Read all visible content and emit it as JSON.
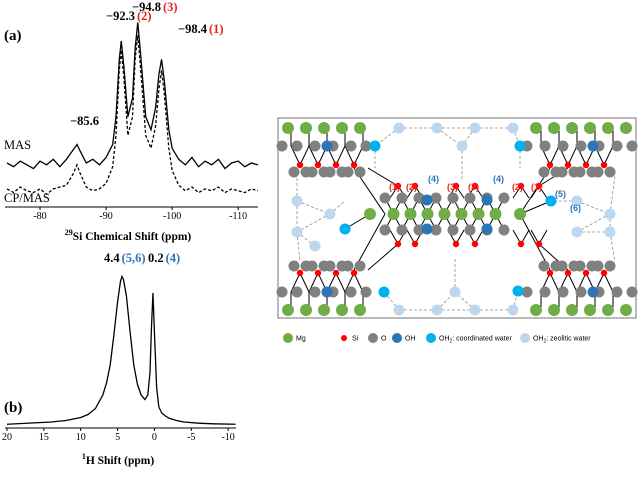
{
  "chart_data": [
    {
      "type": "line",
      "panel": "(a)",
      "xlabel_sup": "29",
      "xlabel": "Si Chemical Shift (ppm)",
      "xlim": [
        -75,
        -113
      ],
      "xticks": [
        -80,
        -90,
        -100,
        -110
      ],
      "ylim": [
        0,
        100
      ],
      "x": [
        -75,
        -76,
        -77,
        -78,
        -79,
        -80,
        -81,
        -82,
        -83,
        -84,
        -85,
        -85.6,
        -86,
        -87,
        -88,
        -89,
        -90,
        -91,
        -91.5,
        -92,
        -92.3,
        -92.7,
        -93.3,
        -94,
        -94.4,
        -94.8,
        -95.2,
        -96,
        -96.8,
        -97.5,
        -98,
        -98.4,
        -98.8,
        -99.5,
        -100,
        -101,
        -102,
        -103,
        -104,
        -105,
        -106,
        -107,
        -108,
        -109,
        -110,
        -111,
        -112,
        -113
      ],
      "series": [
        {
          "name": "MAS",
          "color": "#000000",
          "linestyle": "solid",
          "values": [
            20,
            18,
            21,
            19,
            17,
            21,
            19,
            22,
            18,
            22,
            27,
            30,
            27,
            20,
            22,
            19,
            23,
            30,
            45,
            76,
            86,
            72,
            45,
            55,
            82,
            96,
            80,
            45,
            38,
            50,
            68,
            76,
            65,
            38,
            28,
            22,
            19,
            23,
            18,
            21,
            19,
            22,
            17,
            20,
            21,
            18,
            20,
            19
          ]
        },
        {
          "name": "CP/MAS",
          "color": "#000000",
          "linestyle": "dashed",
          "values": [
            6,
            4,
            7,
            5,
            4,
            6,
            3,
            6,
            7,
            8,
            14,
            19,
            15,
            7,
            5,
            6,
            9,
            18,
            35,
            70,
            81,
            66,
            35,
            45,
            76,
            89,
            72,
            35,
            28,
            40,
            60,
            70,
            58,
            28,
            16,
            8,
            5,
            7,
            4,
            6,
            5,
            7,
            4,
            6,
            5,
            4,
            6,
            5
          ]
        }
      ],
      "annotations": [
        {
          "text": "−92.3",
          "label": "(2)",
          "label_color": "#e8231f"
        },
        {
          "text": "−94.8",
          "label": "(3)",
          "label_color": "#e8231f"
        },
        {
          "text": "−98.4",
          "label": "(1)",
          "label_color": "#e8231f"
        },
        {
          "text": "−85.6"
        }
      ]
    },
    {
      "type": "line",
      "panel": "(b)",
      "xlabel_sup": "1",
      "xlabel": "H  Shift (ppm)",
      "xlim": [
        20,
        -11
      ],
      "xticks": [
        20,
        15,
        10,
        5,
        0,
        -5,
        -10
      ],
      "ylim": [
        0,
        100
      ],
      "x": [
        20,
        18,
        16,
        14,
        12,
        10,
        9,
        8,
        7,
        6.5,
        6,
        5.5,
        5,
        4.6,
        4.4,
        4.2,
        3.8,
        3.3,
        2.8,
        2.3,
        1.8,
        1.3,
        0.9,
        0.6,
        0.4,
        0.2,
        0,
        -0.3,
        -0.6,
        -1,
        -1.5,
        -2,
        -3,
        -4,
        -6,
        -8,
        -11
      ],
      "series": [
        {
          "color": "#000000",
          "linestyle": "solid",
          "values": [
            0.5,
            1,
            1.5,
            2,
            3,
            5,
            7,
            11,
            20,
            28,
            40,
            60,
            82,
            96,
            99,
            97,
            86,
            62,
            40,
            27,
            20,
            17,
            20,
            35,
            65,
            88,
            62,
            25,
            12,
            8,
            6,
            4.5,
            3,
            2,
            1.2,
            0.8,
            0.5
          ]
        }
      ],
      "annotations": [
        {
          "text": "4.4",
          "label": "(5,6)",
          "label_color": "#2e75b6"
        },
        {
          "text": "0.2",
          "label": "(4)",
          "label_color": "#2e75b6"
        }
      ]
    }
  ],
  "diagram": {
    "site_labels": [
      {
        "text": "(1)",
        "color": "#e8231f"
      },
      {
        "text": "(2)",
        "color": "#e8231f"
      },
      {
        "text": "(3)",
        "color": "#e8231f"
      },
      {
        "text": "(3)",
        "color": "#e8231f"
      },
      {
        "text": "(2)",
        "color": "#e8231f"
      },
      {
        "text": "(1)",
        "color": "#e8231f"
      },
      {
        "text": "(4)",
        "color": "#2e75b6"
      },
      {
        "text": "(4)",
        "color": "#2e75b6"
      },
      {
        "text": "(5)",
        "color": "#2e75b6"
      },
      {
        "text": "(6)",
        "color": "#2e75b6"
      }
    ],
    "legend": [
      {
        "text": "Mg",
        "color": "#70ad47"
      },
      {
        "text": "Si",
        "color": "#ff0000"
      },
      {
        "text": "O",
        "color": "#808080"
      },
      {
        "text": "OH",
        "color": "#2e75b6"
      },
      {
        "text": "OH",
        "sub": "2",
        "rest": ": coordinated water",
        "color": "#00b0f0"
      },
      {
        "text": "OH",
        "sub": "2",
        "rest": ": zeolitic water",
        "color": "#bdd7ee"
      }
    ]
  }
}
